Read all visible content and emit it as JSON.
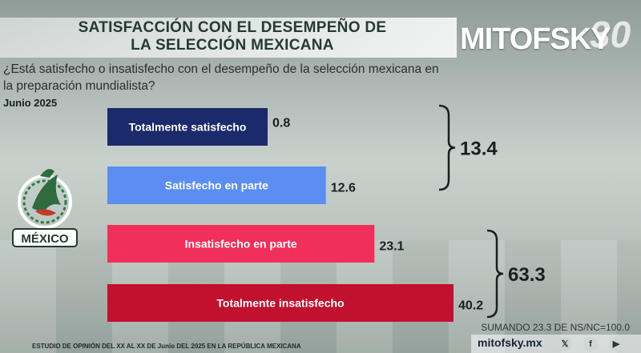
{
  "header": {
    "title_line1": "SATISFACCIÓN CON EL DESEMPEÑO DE",
    "title_line2": "LA SELECCIÓN MEXICANA",
    "logo_text": "MITOFSKY",
    "logo_number": "30"
  },
  "question": "¿Está satisfecho o insatisfecho con el desempeño de la selección mexicana en la preparación mundialista?",
  "date": "Junio 2025",
  "emblem_label": "MÉXICO",
  "chart_data": {
    "type": "bar",
    "orientation": "horizontal",
    "categories": [
      "Totalmente satisfecho",
      "Satisfecho en parte",
      "Insatisfecho en parte",
      "Totalmente insatisfecho"
    ],
    "values": [
      0.8,
      12.6,
      23.1,
      40.2
    ],
    "value_labels": [
      "0.8",
      "12.6",
      "23.1",
      "40.2"
    ],
    "colors": [
      "#1b2a6b",
      "#5b8ef0",
      "#f0305a",
      "#c0112f"
    ],
    "groups": [
      {
        "label": "13.4",
        "value": 13.4,
        "members": [
          0,
          1
        ]
      },
      {
        "label": "63.3",
        "value": 63.3,
        "members": [
          2,
          3
        ]
      }
    ],
    "xlim": [
      0,
      40.2
    ]
  },
  "footer": {
    "note": "SUMANDO 23.3 DE NS/NC=100.0",
    "study": "ESTUDIO DE OPINIÓN DEL XX AL XX DE Junio DEL 2025 EN LA REPÚBLICA MEXICANA",
    "brand": "mitofsky.mx",
    "social": [
      "x-icon",
      "facebook-icon",
      "youtube-icon"
    ]
  }
}
